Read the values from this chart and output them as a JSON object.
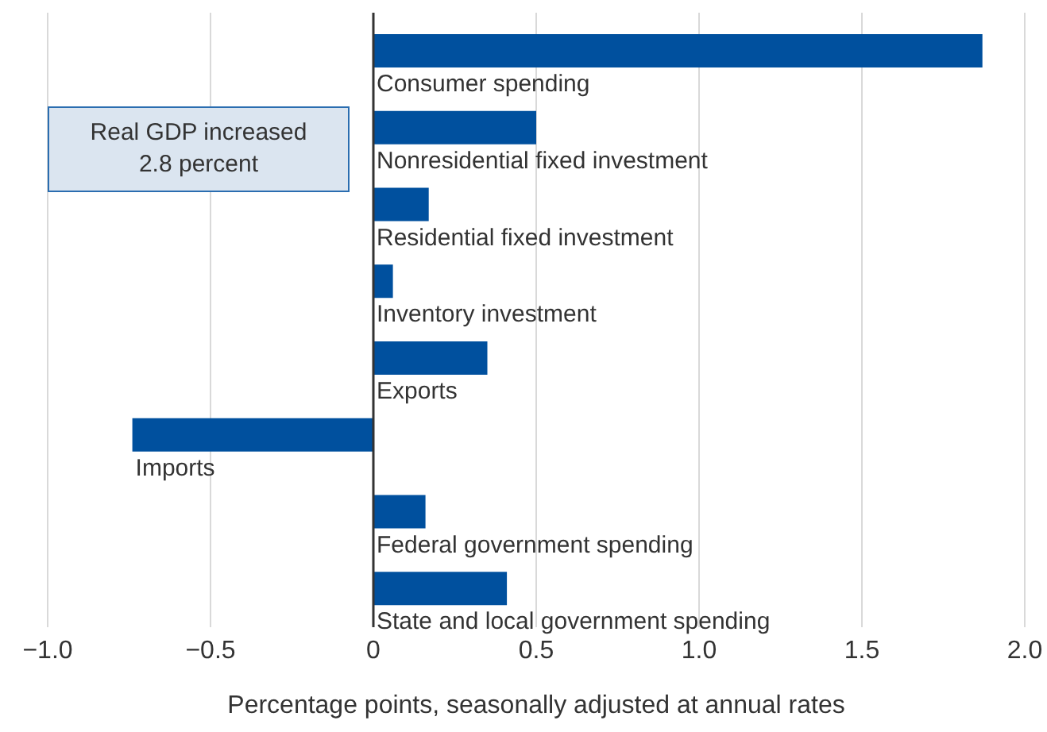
{
  "chart_data": {
    "type": "bar",
    "orientation": "horizontal",
    "categories": [
      "Consumer spending",
      "Nonresidential fixed investment",
      "Residential fixed investment",
      "Inventory investment",
      "Exports",
      "Imports",
      "Federal government spending",
      "State and local government spending"
    ],
    "values": [
      1.87,
      0.5,
      0.17,
      0.06,
      0.35,
      -0.74,
      0.16,
      0.41
    ],
    "color": "#00509e",
    "xlabel": "Percentage points, seasonally adjusted at annual rates",
    "xlim": [
      -1,
      2
    ],
    "xticks": [
      {
        "value": -1,
        "label": "−1.0"
      },
      {
        "value": -0.5,
        "label": "−0.5"
      },
      {
        "value": 0,
        "label": "0"
      },
      {
        "value": 0.5,
        "label": "0.5"
      },
      {
        "value": 1,
        "label": "1.0"
      },
      {
        "value": 1.5,
        "label": "1.5"
      },
      {
        "value": 2,
        "label": "2.0"
      }
    ],
    "grid": "x",
    "annotations": [
      "Real GDP increased\n2.8 percent"
    ]
  }
}
